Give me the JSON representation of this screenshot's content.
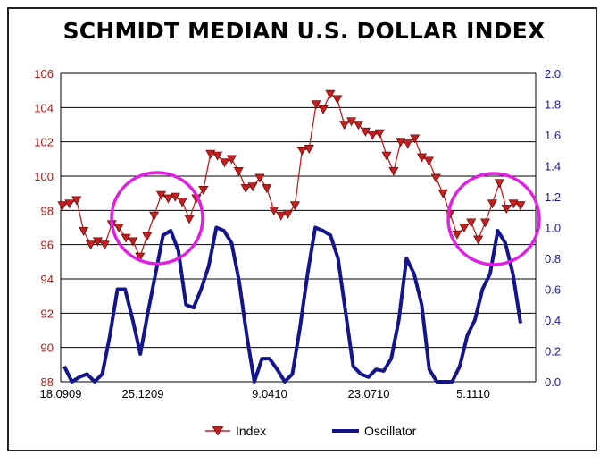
{
  "chart_data": {
    "type": "line",
    "title": "SCHMIDT MEDIAN U.S. DOLLAR INDEX",
    "x_tick_labels": [
      "18.0909",
      "25.1209",
      "9.0410",
      "23.0710",
      "5.1110"
    ],
    "y_left": {
      "range": [
        88,
        106
      ],
      "ticks": [
        88,
        90,
        92,
        94,
        96,
        98,
        100,
        102,
        104,
        106
      ]
    },
    "y_right": {
      "range": [
        0.0,
        2.0
      ],
      "ticks": [
        "0.0",
        "0.2",
        "0.4",
        "0.6",
        "0.8",
        "1.0",
        "1.2",
        "1.4",
        "1.6",
        "1.8",
        "2.0"
      ]
    },
    "grid": "horizontal",
    "legend": "bottom",
    "colors": {
      "index": "#c02020",
      "oscillator": "#14148c",
      "highlight": "#e020e0"
    },
    "series": [
      {
        "name": "Index",
        "axis": "left",
        "marker": "triangle-down",
        "values": [
          98.3,
          98.4,
          98.6,
          96.8,
          96.0,
          96.2,
          96.0,
          97.2,
          97.0,
          96.4,
          96.2,
          95.3,
          96.5,
          97.7,
          98.9,
          98.7,
          98.8,
          98.5,
          97.5,
          98.7,
          99.2,
          101.3,
          101.2,
          100.8,
          101.0,
          100.3,
          99.3,
          99.4,
          99.9,
          99.3,
          98.0,
          97.7,
          97.8,
          98.3,
          101.5,
          101.6,
          104.2,
          103.9,
          104.8,
          104.5,
          103.0,
          103.2,
          103.0,
          102.6,
          102.4,
          102.5,
          101.2,
          100.3,
          102.0,
          101.9,
          102.2,
          101.1,
          100.9,
          99.9,
          99.0,
          97.8,
          96.6,
          97.0,
          97.3,
          96.3,
          97.3,
          98.4,
          99.6,
          98.1,
          98.4,
          98.3
        ]
      },
      {
        "name": "Oscillator",
        "axis": "right",
        "values": [
          0.1,
          0.0,
          0.03,
          0.05,
          0.0,
          0.05,
          0.3,
          0.6,
          0.6,
          0.4,
          0.18,
          0.45,
          0.7,
          0.95,
          0.98,
          0.85,
          0.5,
          0.48,
          0.6,
          0.75,
          1.0,
          0.98,
          0.9,
          0.65,
          0.3,
          0.0,
          0.15,
          0.15,
          0.08,
          0.0,
          0.05,
          0.35,
          0.7,
          1.0,
          0.98,
          0.95,
          0.8,
          0.45,
          0.1,
          0.05,
          0.03,
          0.08,
          0.07,
          0.15,
          0.4,
          0.8,
          0.7,
          0.5,
          0.08,
          0.0,
          0.0,
          0.0,
          0.1,
          0.3,
          0.4,
          0.6,
          0.7,
          0.98,
          0.9,
          0.7,
          0.38
        ]
      }
    ]
  }
}
